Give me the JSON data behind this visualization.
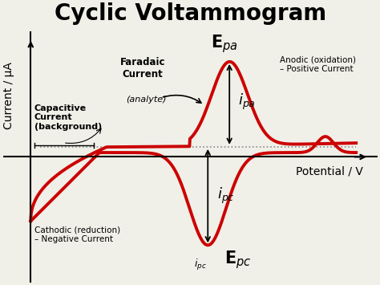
{
  "title": "Cyclic Voltammogram",
  "xlabel": "Potential / V",
  "ylabel": "Current / μA",
  "bg_color": "#f0f0e8",
  "curve_color": "#cc0000",
  "dashed_color": "#888888",
  "title_fontsize": 20,
  "label_fontsize": 11
}
